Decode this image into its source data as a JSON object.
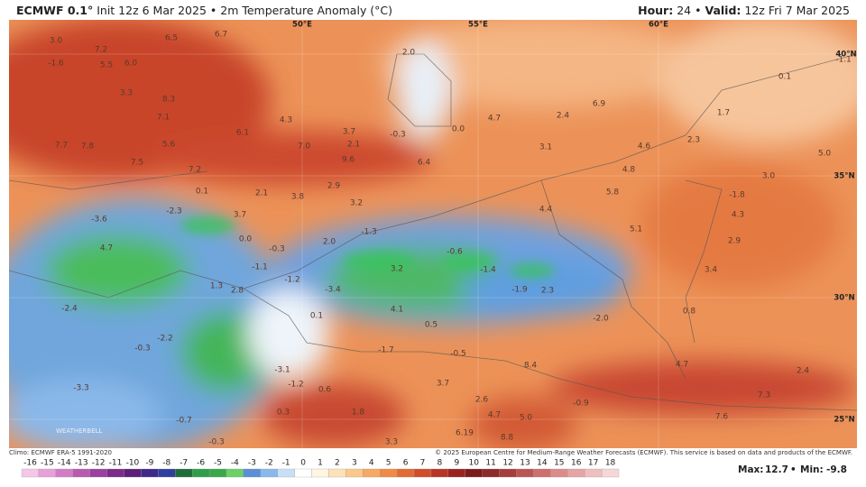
{
  "header": {
    "model": "ECMWF 0.1°",
    "init": "Init 12z 6 Mar 2025",
    "title": "2m Temperature Anomaly (°C)",
    "hour_label": "Hour:",
    "hour": "24",
    "valid_label": "Valid:",
    "valid": "12z Fri 7 Mar 2025"
  },
  "grid_labels": [
    "50°E",
    "55°E",
    "60°E",
    "40°N",
    "35°N",
    "30°N",
    "25°N"
  ],
  "map_labels": [
    "3.0",
    "6.5",
    "6.7",
    "7.2",
    "-1.6",
    "5.5",
    "6.0",
    "2.0",
    "3.3",
    "8.3",
    "7.1",
    "4.3",
    "6.1",
    "3.7",
    "2.1",
    "-0.3",
    "0.0",
    "4.7",
    "2.4",
    "6.9",
    "1.7",
    "0.1",
    "-1.1",
    "7.7",
    "7.8",
    "5.6",
    "7.0",
    "9.6",
    "6.4",
    "3.1",
    "4.6",
    "2.3",
    "5.0",
    "7.5",
    "7.2",
    "4.8",
    "3.0",
    "0.1",
    "2.1",
    "3.8",
    "2.9",
    "3.2",
    "5.8",
    "-1.8",
    "-2.3",
    "-3.6",
    "3.7",
    "4.4",
    "4.3",
    "0.0",
    "-1.3",
    "5.1",
    "4.7",
    "-0.3",
    "2.0",
    "-0.6",
    "2.9",
    "-1.1",
    "3.2",
    "-1.4",
    "3.4",
    "1.3",
    "-1.2",
    "-3.4",
    "-1.9",
    "2.3",
    "2.8",
    "4.1",
    "-2.4",
    "0.1",
    "-2.0",
    "0.8",
    "0.5",
    "-2.2",
    "-0.3",
    "-1.7",
    "-0.5",
    "8.4",
    "4.7",
    "2.4",
    "-3.1",
    "-3.3",
    "-1.2",
    "0.6",
    "3.7",
    "2.6",
    "-0.9",
    "7.3",
    "0.3",
    "1.8",
    "4.7",
    "5.0",
    "7.6",
    "-0.7",
    "6.19",
    "-0.3",
    "8.8",
    "3.3"
  ],
  "watermark": "WEATHERBELL",
  "footer": {
    "climo": "Climo: ECMWF ERA-5 1991-2020",
    "copyright": "© 2025 European Centre for Medium-Range Weather Forecasts (ECMWF). This service is based on data and products of the ECMWF.",
    "max_label": "Max:",
    "max": 12.7,
    "min_label": "Min:",
    "min": -9.8
  },
  "legend": {
    "ticks": [
      -16,
      -15,
      -14,
      -13,
      -12,
      -11,
      -10,
      -9,
      -8,
      -7,
      -6,
      -5,
      -4,
      -3,
      -2,
      -1,
      0,
      1,
      2,
      3,
      4,
      5,
      6,
      7,
      8,
      9,
      10,
      11,
      12,
      13,
      14,
      15,
      16,
      17,
      18
    ],
    "colors": [
      "#f5c6e8",
      "#e8a0d8",
      "#d27cc6",
      "#b85bb0",
      "#9b3fa0",
      "#7e2a8a",
      "#5e1f78",
      "#3f2a8a",
      "#2f3f9e",
      "#1f6e3a",
      "#2e9e4a",
      "#3aa84a",
      "#6ccf68",
      "#5a8fd8",
      "#8ab8ea",
      "#c8e0f6",
      "#ffffff",
      "#fff5e0",
      "#fde2b8",
      "#fbc88a",
      "#f7a862",
      "#f08a45",
      "#e46a34",
      "#d24c2a",
      "#b93424",
      "#9a2320",
      "#7c1a1c",
      "#8e2a2a",
      "#a63c3c",
      "#bd5454",
      "#cf6e6e",
      "#dd8a8a",
      "#e6a4a4",
      "#efbebe",
      "#f6d6d6"
    ]
  }
}
